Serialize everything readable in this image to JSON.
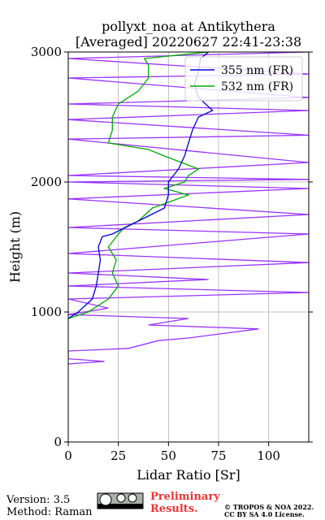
{
  "chart_data": {
    "type": "line",
    "title": [
      "pollyxt_noa at Antikythera",
      "[Averaged] 20220627 22:41-23:38"
    ],
    "x_label": "Lidar Ratio [Sr]",
    "y_label": "Height (m)",
    "xlim": [
      0,
      120
    ],
    "xticks": [
      0,
      25,
      50,
      75,
      100
    ],
    "ylim": [
      0,
      3000
    ],
    "yticks": [
      0,
      1000,
      2000,
      3000
    ],
    "grid": true,
    "legend": "upper right",
    "series": [
      {
        "name": "355 nm (FR)",
        "color": "#0000dd",
        "x": [
          0,
          5,
          12,
          14,
          15,
          16,
          15,
          17,
          22,
          35,
          48,
          50,
          50,
          55,
          58,
          60,
          62,
          65,
          72,
          65,
          63,
          65,
          66,
          70
        ],
        "y": [
          950,
          1000,
          1100,
          1200,
          1300,
          1400,
          1500,
          1580,
          1600,
          1700,
          1800,
          1900,
          2000,
          2100,
          2200,
          2300,
          2400,
          2500,
          2550,
          2650,
          2750,
          2850,
          2950,
          3000
        ]
      },
      {
        "name": "532 nm (FR)",
        "color": "#00aa00",
        "x": [
          0,
          10,
          20,
          25,
          22,
          24,
          20,
          25,
          28,
          35,
          42,
          60,
          48,
          58,
          60,
          65,
          48,
          40,
          20,
          22,
          22,
          25,
          35,
          40,
          40,
          38,
          70
        ],
        "y": [
          950,
          1000,
          1100,
          1200,
          1300,
          1400,
          1500,
          1600,
          1650,
          1700,
          1800,
          1900,
          1950,
          2000,
          2050,
          2100,
          2200,
          2250,
          2300,
          2400,
          2500,
          2600,
          2700,
          2800,
          2900,
          2950,
          3000
        ]
      },
      {
        "color": "#9933ff",
        "x": [
          0,
          18,
          0,
          0,
          30,
          45,
          60,
          95,
          40,
          60,
          0,
          20,
          0,
          120,
          0,
          70,
          0,
          120,
          0,
          120,
          0,
          120,
          0,
          120,
          0,
          120,
          0,
          120,
          0,
          120,
          0,
          120,
          0,
          120,
          0,
          120,
          0,
          120
        ],
        "y": [
          600,
          620,
          640,
          700,
          720,
          780,
          800,
          870,
          900,
          950,
          980,
          1030,
          1100,
          1150,
          1200,
          1250,
          1300,
          1380,
          1450,
          1600,
          1650,
          1750,
          1870,
          1950,
          2000,
          2020,
          2050,
          2150,
          2330,
          2360,
          2480,
          2550,
          2600,
          2650,
          2800,
          2830,
          2950,
          3000
        ]
      }
    ]
  },
  "footer": {
    "version": "Version: 3.5",
    "method": "Method: Raman",
    "preliminary": [
      "Preliminary",
      "Results."
    ],
    "copyright": [
      "© TROPOS & NOA 2022.",
      "CC BY SA 4.0 License."
    ]
  }
}
